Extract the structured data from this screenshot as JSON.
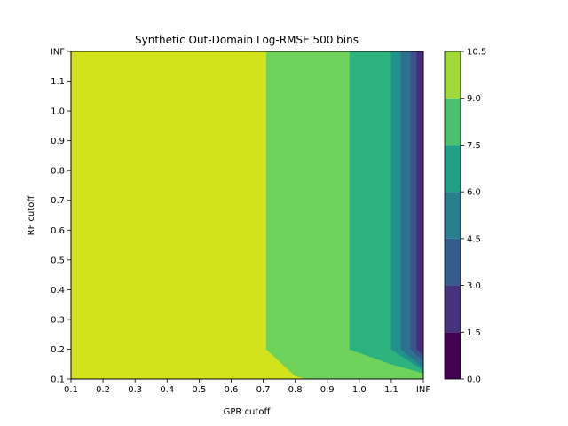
{
  "chart_data": {
    "type": "contourf",
    "title": "Synthetic Out-Domain Log-RMSE 500 bins",
    "xlabel": "GPR cutoff",
    "ylabel": "RF cutoff",
    "x_ticks": [
      "0.1",
      "0.2",
      "0.3",
      "0.4",
      "0.5",
      "0.6",
      "0.7",
      "0.8",
      "0.9",
      "1.0",
      "1.1",
      "INF"
    ],
    "y_ticks": [
      "0.1",
      "0.2",
      "0.3",
      "0.4",
      "0.5",
      "0.6",
      "0.7",
      "0.8",
      "0.9",
      "1.0",
      "1.1",
      "INF"
    ],
    "colorbar": {
      "levels": [
        0.0,
        1.5,
        3.0,
        4.5,
        6.0,
        7.5,
        9.0,
        10.5
      ],
      "tick_labels": [
        "0.0",
        "1.5",
        "3.0",
        "4.5",
        "6.0",
        "7.5",
        "9.0",
        "10.5"
      ],
      "colors": [
        "#440154",
        "#46327e",
        "#365c8d",
        "#277f8e",
        "#1fa187",
        "#4ac16d",
        "#a0da39",
        "#d2e21b"
      ]
    },
    "regions": [
      {
        "range": [
          9.0,
          10.5
        ],
        "color": "#d2e21b",
        "polygon": [
          [
            0.1,
            0.1
          ],
          [
            0.1,
            1.2
          ],
          [
            0.71,
            1.2
          ],
          [
            0.71,
            0.2
          ],
          [
            0.76,
            0.15
          ],
          [
            0.8,
            0.11
          ],
          [
            0.84,
            0.1
          ]
        ]
      },
      {
        "range": [
          7.5,
          9.0
        ],
        "color": "#6fd35b",
        "polygon": [
          [
            0.71,
            1.2
          ],
          [
            0.97,
            1.2
          ],
          [
            0.97,
            0.2
          ],
          [
            1.1,
            0.15
          ],
          [
            1.2,
            0.12
          ],
          [
            1.2,
            0.1
          ],
          [
            0.84,
            0.1
          ],
          [
            0.8,
            0.11
          ],
          [
            0.76,
            0.15
          ],
          [
            0.71,
            0.2
          ]
        ]
      },
      {
        "range": [
          6.0,
          7.5
        ],
        "color": "#2db27d",
        "polygon": [
          [
            0.97,
            1.2
          ],
          [
            1.1,
            1.2
          ],
          [
            1.1,
            0.2
          ],
          [
            1.2,
            0.13
          ],
          [
            1.2,
            0.12
          ],
          [
            1.1,
            0.15
          ],
          [
            0.97,
            0.2
          ]
        ]
      },
      {
        "range": [
          4.5,
          6.0
        ],
        "color": "#21918c",
        "polygon": [
          [
            1.1,
            1.2
          ],
          [
            1.13,
            1.2
          ],
          [
            1.13,
            0.2
          ],
          [
            1.2,
            0.14
          ],
          [
            1.2,
            0.13
          ],
          [
            1.1,
            0.2
          ]
        ]
      },
      {
        "range": [
          3.0,
          4.5
        ],
        "color": "#2c728e",
        "polygon": [
          [
            1.13,
            1.2
          ],
          [
            1.16,
            1.2
          ],
          [
            1.16,
            0.2
          ],
          [
            1.2,
            0.16
          ],
          [
            1.2,
            0.14
          ],
          [
            1.13,
            0.2
          ]
        ]
      },
      {
        "range": [
          1.5,
          3.0
        ],
        "color": "#3b528b",
        "polygon": [
          [
            1.16,
            1.2
          ],
          [
            1.18,
            1.2
          ],
          [
            1.18,
            0.2
          ],
          [
            1.2,
            0.18
          ],
          [
            1.2,
            0.16
          ],
          [
            1.16,
            0.2
          ]
        ]
      },
      {
        "range": [
          0.0,
          1.5
        ],
        "color": "#472d7b",
        "polygon": [
          [
            1.18,
            1.2
          ],
          [
            1.2,
            1.2
          ],
          [
            1.2,
            0.18
          ],
          [
            1.18,
            0.2
          ]
        ]
      }
    ],
    "xlim": [
      0.1,
      1.2
    ],
    "ylim": [
      0.1,
      1.2
    ]
  }
}
